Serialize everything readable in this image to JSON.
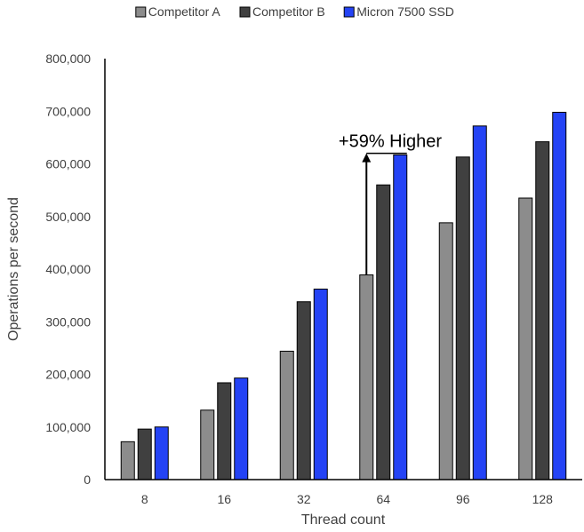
{
  "chart_data": {
    "type": "bar",
    "categories": [
      "8",
      "16",
      "32",
      "64",
      "96",
      "128"
    ],
    "series": [
      {
        "name": "Competitor A",
        "color": "#8c8c8c",
        "values": [
          72000,
          132000,
          244000,
          389000,
          488000,
          535000
        ]
      },
      {
        "name": "Competitor B",
        "color": "#404040",
        "values": [
          96000,
          184000,
          338000,
          560000,
          613000,
          642000
        ]
      },
      {
        "name": "Micron 7500 SSD",
        "color": "#2443f5",
        "values": [
          100000,
          193000,
          362000,
          617000,
          672000,
          698000
        ]
      }
    ],
    "xlabel": "Thread count",
    "ylabel": "Operations per second",
    "ylim": [
      0,
      800000
    ],
    "yticks": [
      "0",
      "100,000",
      "200,000",
      "300,000",
      "400,000",
      "500,000",
      "600,000",
      "700,000",
      "800,000"
    ],
    "legend_position": "top",
    "grid": false,
    "annotation": {
      "text": "+59% Higher",
      "category": "64",
      "from_value": 389000,
      "to_value": 620000
    }
  }
}
